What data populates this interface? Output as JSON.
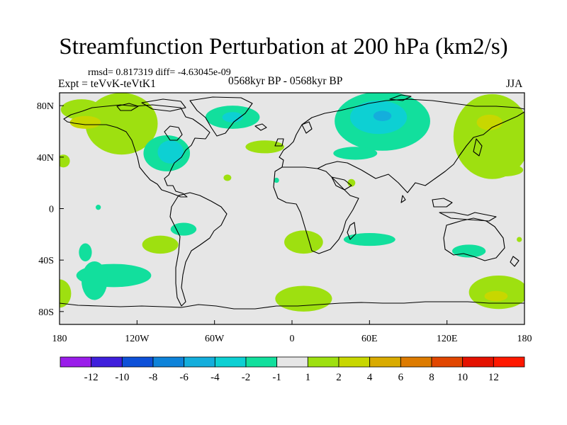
{
  "header": {
    "title": "Streamfunction Perturbation at 200 hPa (km2/s)",
    "stats": "rmsd= 0.817319 diff= -4.63045e-09",
    "experiment": "Expt = teVvK-teVtK1",
    "period": "0568kyr BP - 0568kyr BP",
    "season": "JJA"
  },
  "chart_data": {
    "type": "heatmap",
    "subtype": "filled-contour map",
    "title": "Streamfunction Perturbation at 200 hPa (km2/s)",
    "xlim": [
      -180,
      180
    ],
    "ylim": [
      -90,
      90
    ],
    "x_ticks": [
      {
        "value": -180,
        "label": "180"
      },
      {
        "value": -120,
        "label": "120W"
      },
      {
        "value": -60,
        "label": "60W"
      },
      {
        "value": 0,
        "label": "0"
      },
      {
        "value": 60,
        "label": "60E"
      },
      {
        "value": 120,
        "label": "120E"
      },
      {
        "value": 180,
        "label": "180"
      }
    ],
    "y_ticks": [
      {
        "value": 80,
        "label": "80N"
      },
      {
        "value": 40,
        "label": "40N"
      },
      {
        "value": 0,
        "label": "0"
      },
      {
        "value": -40,
        "label": "40S"
      },
      {
        "value": -80,
        "label": "80S"
      }
    ],
    "background_color": "#e6e6e6",
    "colorbar": {
      "labels": [
        "-12",
        "-10",
        "-8",
        "-6",
        "-4",
        "-2",
        "-1",
        "1",
        "2",
        "4",
        "6",
        "8",
        "10",
        "12"
      ],
      "colors": [
        "#9a1dea",
        "#3f1fdc",
        "#0d50d8",
        "#0e83d9",
        "#14aedc",
        "#0dd0d3",
        "#12df9d",
        "#e6e6e6",
        "#9ee010",
        "#c8d700",
        "#d9ab00",
        "#dd7b00",
        "#e14600",
        "#e41200",
        "#ff1800"
      ]
    },
    "regions": [
      {
        "level": "1",
        "lon": -163,
        "lat": 77,
        "rx": 16,
        "ry": 8
      },
      {
        "level": "1",
        "lon": -132,
        "lat": 66,
        "rx": 28,
        "ry": 24
      },
      {
        "level": "2",
        "lon": -160,
        "lat": 67,
        "rx": 12,
        "ry": 5
      },
      {
        "level": "1",
        "lon": -177,
        "lat": 37,
        "rx": 5,
        "ry": 5
      },
      {
        "level": "-1",
        "lon": -97,
        "lat": 43,
        "rx": 18,
        "ry": 14
      },
      {
        "level": "-2",
        "lon": -94,
        "lat": 44,
        "rx": 10,
        "ry": 9
      },
      {
        "level": "-1",
        "lon": -46,
        "lat": 71,
        "rx": 21,
        "ry": 9
      },
      {
        "level": "-2",
        "lon": -46,
        "lat": 71,
        "rx": 8,
        "ry": 4
      },
      {
        "level": "1",
        "lon": -21,
        "lat": 48,
        "rx": 15,
        "ry": 5
      },
      {
        "level": "1",
        "lon": -50,
        "lat": 24,
        "rx": 3,
        "ry": 2.5
      },
      {
        "level": "-1",
        "lon": -12,
        "lat": 22,
        "rx": 2,
        "ry": 2
      },
      {
        "level": "-1",
        "lon": 70,
        "lat": 68,
        "rx": 37,
        "ry": 23
      },
      {
        "level": "-2",
        "lon": 67,
        "lat": 71,
        "rx": 22,
        "ry": 13
      },
      {
        "level": "-4",
        "lon": 70,
        "lat": 72,
        "rx": 7,
        "ry": 4
      },
      {
        "level": "-1",
        "lon": 49,
        "lat": 43,
        "rx": 17,
        "ry": 5
      },
      {
        "level": "1",
        "lon": 46,
        "lat": 20,
        "rx": 3,
        "ry": 3
      },
      {
        "level": "1",
        "lon": 155,
        "lat": 56,
        "rx": 30,
        "ry": 33
      },
      {
        "level": "2",
        "lon": 153,
        "lat": 67,
        "rx": 10,
        "ry": 6
      },
      {
        "level": "1",
        "lon": 164,
        "lat": 30,
        "rx": 15,
        "ry": 5
      },
      {
        "level": "1",
        "lon": -102,
        "lat": -28,
        "rx": 14,
        "ry": 7
      },
      {
        "level": "-1",
        "lon": -84,
        "lat": -16,
        "rx": 10,
        "ry": 5
      },
      {
        "level": "-1",
        "lon": -160,
        "lat": -34,
        "rx": 5,
        "ry": 7
      },
      {
        "level": "-1",
        "lon": -138,
        "lat": -52,
        "rx": 29,
        "ry": 9
      },
      {
        "level": "-1",
        "lon": -153,
        "lat": -56,
        "rx": 10,
        "ry": 15
      },
      {
        "level": "1",
        "lon": -180,
        "lat": -66,
        "rx": 9,
        "ry": 11
      },
      {
        "level": "-1",
        "lon": -150,
        "lat": 1,
        "rx": 2,
        "ry": 2
      },
      {
        "level": "1",
        "lon": 9,
        "lat": -26,
        "rx": 15,
        "ry": 9
      },
      {
        "level": "-1",
        "lon": 60,
        "lat": -24,
        "rx": 20,
        "ry": 5
      },
      {
        "level": "1",
        "lon": 9,
        "lat": -70,
        "rx": 22,
        "ry": 10
      },
      {
        "level": "-1",
        "lon": 137,
        "lat": -33,
        "rx": 13,
        "ry": 5
      },
      {
        "level": "1",
        "lon": 176,
        "lat": -24,
        "rx": 2,
        "ry": 2
      },
      {
        "level": "1",
        "lon": 160,
        "lat": -65,
        "rx": 23,
        "ry": 13
      },
      {
        "level": "2",
        "lon": 158,
        "lat": -68,
        "rx": 9,
        "ry": 4
      }
    ]
  }
}
